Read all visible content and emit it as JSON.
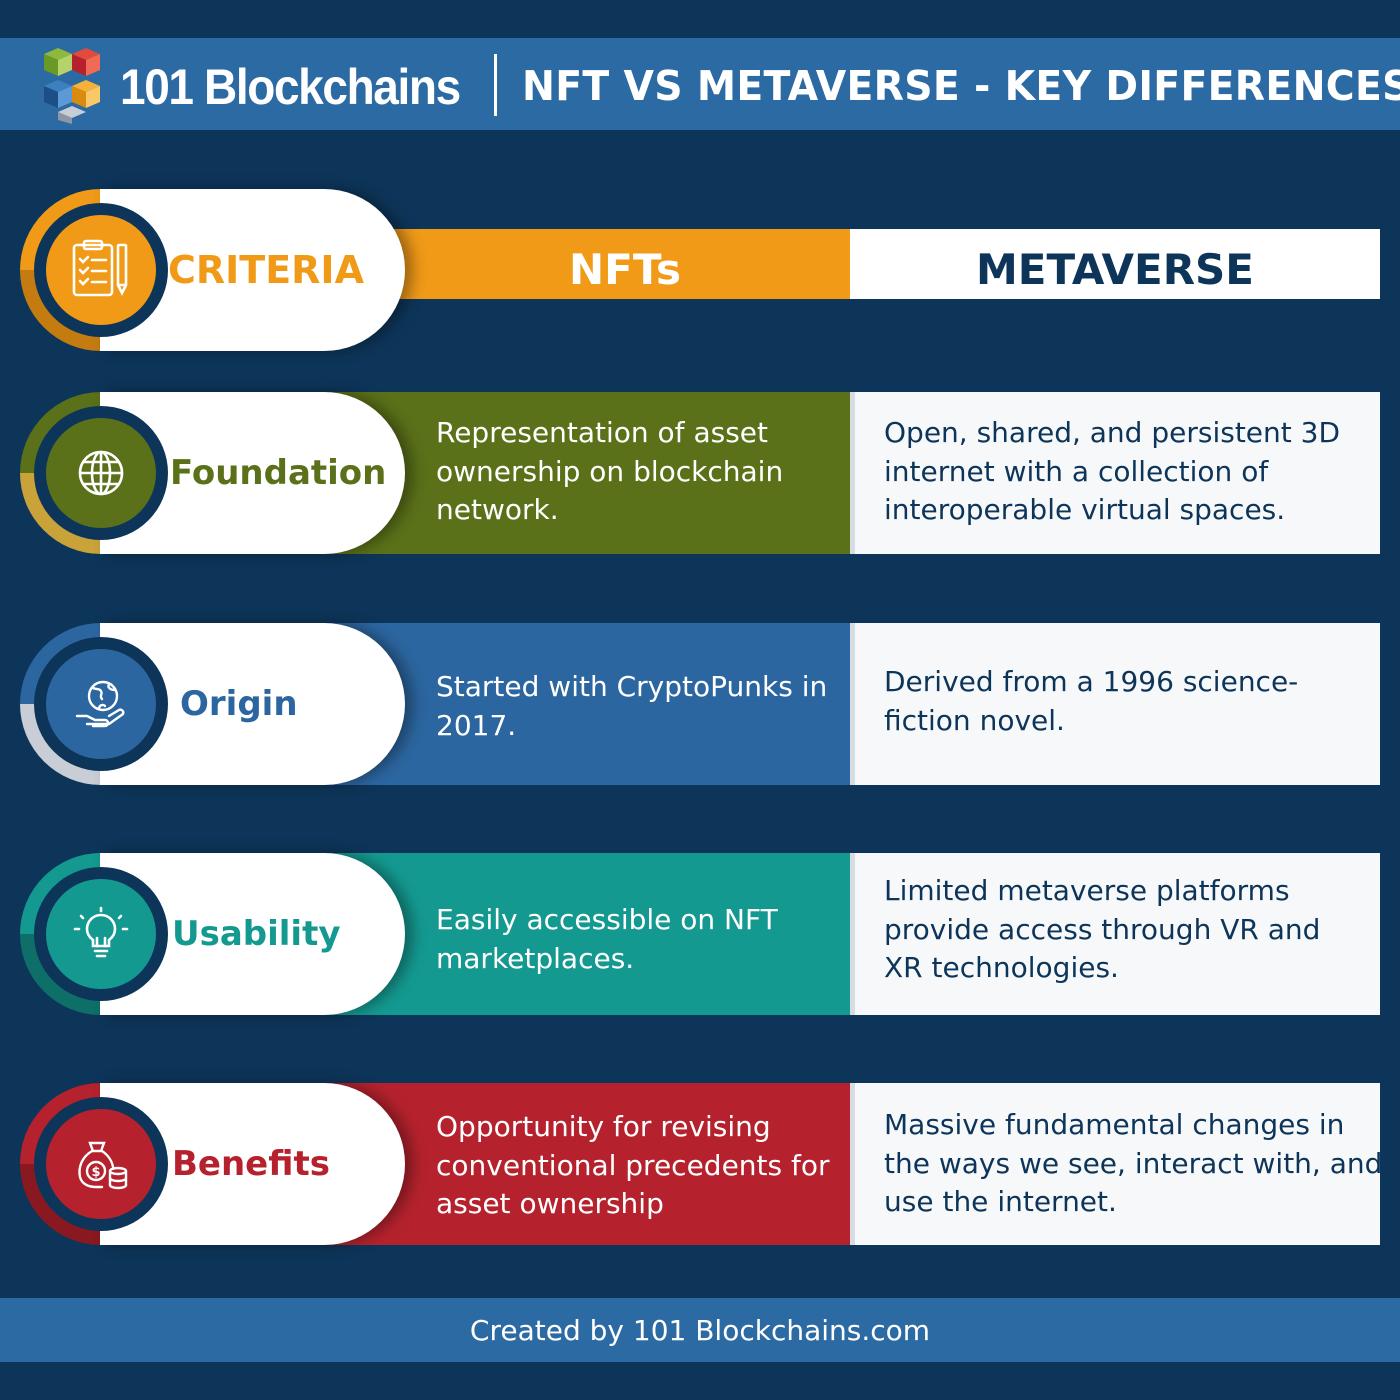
{
  "header": {
    "brand": "101 Blockchains",
    "title": "NFT VS METAVERSE - KEY DIFFERENCES"
  },
  "columns": {
    "criteria": "CRITERIA",
    "nfts": "NFTs",
    "metaverse": "METAVERSE"
  },
  "rows": [
    {
      "label": "Foundation",
      "icon": "globe-icon",
      "color": "#5a7119",
      "nft": "Representation of asset ownership on blockchain network.",
      "metaverse": "Open, shared, and persistent 3D internet with a collection of interoperable virtual spaces."
    },
    {
      "label": "Origin",
      "icon": "hand-globe-icon",
      "color": "#2c66a0",
      "nft": "Started with CryptoPunks in 2017.",
      "metaverse": "Derived from a 1996 science-fiction novel."
    },
    {
      "label": "Usability",
      "icon": "lightbulb-icon",
      "color": "#149990",
      "nft": "Easily accessible on NFT marketplaces.",
      "metaverse": "Limited metaverse platforms provide access through VR and XR technologies."
    },
    {
      "label": "Benefits",
      "icon": "money-bag-icon",
      "color": "#b5222d",
      "nft": "Opportunity for revising conventional precedents for asset ownership",
      "metaverse": "Massive fundamental changes in the ways we see, interact with, and use the internet."
    }
  ],
  "footer": {
    "credit": "Created by 101 Blockchains.com"
  },
  "colors": {
    "background": "#0d3559",
    "header": "#2c6aa3",
    "criteria": "#f09a18"
  }
}
